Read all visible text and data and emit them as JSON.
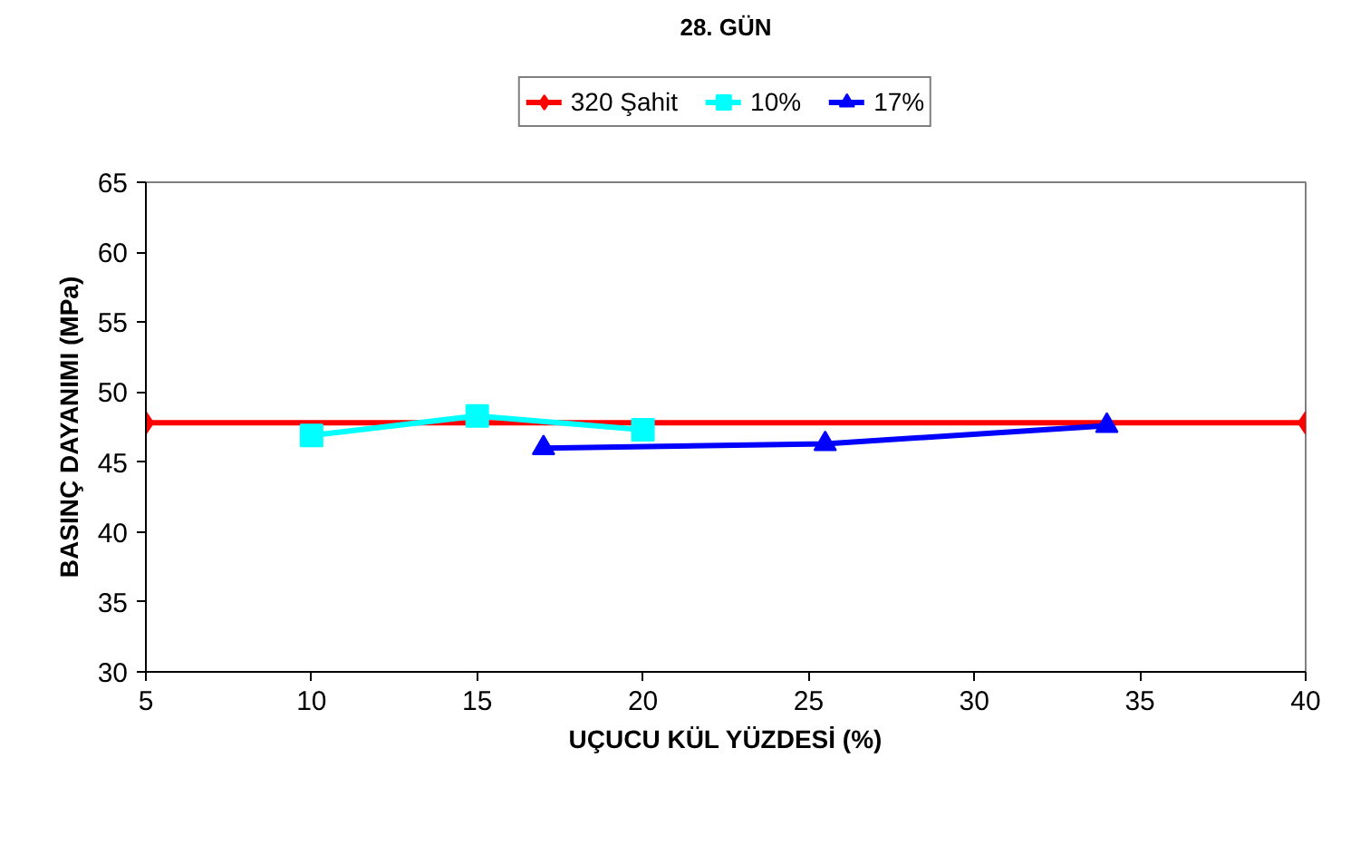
{
  "chart_data": {
    "type": "line",
    "title": "28. GÜN",
    "xlabel": "UÇUCU KÜL YÜZDESİ (%)",
    "ylabel": "BASINÇ DAYANIMI (MPa)",
    "xlim": [
      5,
      40
    ],
    "xticks": [
      5,
      10,
      15,
      20,
      25,
      30,
      35,
      40
    ],
    "ylim": [
      30,
      65
    ],
    "yticks": [
      30,
      35,
      40,
      45,
      50,
      55,
      60,
      65
    ],
    "grid": false,
    "legend": "top",
    "series": [
      {
        "name": "320 Şahit",
        "color": "#ff0000",
        "marker": "diamond",
        "x": [
          5,
          40
        ],
        "values": [
          47.8,
          47.8
        ]
      },
      {
        "name": "10%",
        "color": "#00ffff",
        "marker": "square",
        "x": [
          10,
          15,
          20
        ],
        "values": [
          46.9,
          48.3,
          47.3
        ]
      },
      {
        "name": "17%",
        "color": "#0000ff",
        "marker": "triangle",
        "x": [
          17,
          25.5,
          34
        ],
        "values": [
          46.0,
          46.3,
          47.6
        ]
      }
    ]
  }
}
